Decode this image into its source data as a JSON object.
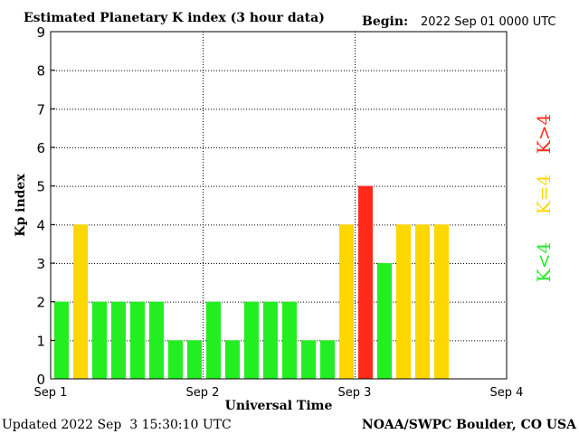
{
  "header": {
    "title": "Estimated Planetary K index (3 hour data)",
    "begin_label": "Begin:",
    "begin_value": "2022 Sep 01 0000 UTC"
  },
  "footer": {
    "updated": "Updated 2022 Sep  3 15:30:10 UTC",
    "credit": "NOAA/SWPC Boulder, CO USA"
  },
  "legend": {
    "high": {
      "label": "K>4",
      "color": "#ff2a1a"
    },
    "equal": {
      "label": "K=4",
      "color": "#ffd700"
    },
    "low": {
      "label": "K<4",
      "color": "#22ee22"
    }
  },
  "chart_data": {
    "type": "bar",
    "title": "Estimated Planetary K index (3 hour data)",
    "xlabel": "Universal Time",
    "ylabel": "Kp index",
    "ylim": [
      0,
      9
    ],
    "yticks": [
      "0",
      "1",
      "2",
      "3",
      "4",
      "5",
      "6",
      "7",
      "8",
      "9"
    ],
    "xticks": [
      "Sep 1",
      "Sep 2",
      "Sep 3",
      "Sep 4"
    ],
    "slots_per_day": 8,
    "days": 3,
    "values": [
      2,
      4,
      2,
      2,
      2,
      2,
      1,
      1,
      2,
      1,
      2,
      2,
      2,
      1,
      1,
      4,
      5,
      3,
      4,
      4,
      4
    ],
    "grid": true,
    "colors": {
      "low": "#22ee22",
      "equal": "#ffd700",
      "high": "#ff2a1a"
    }
  }
}
